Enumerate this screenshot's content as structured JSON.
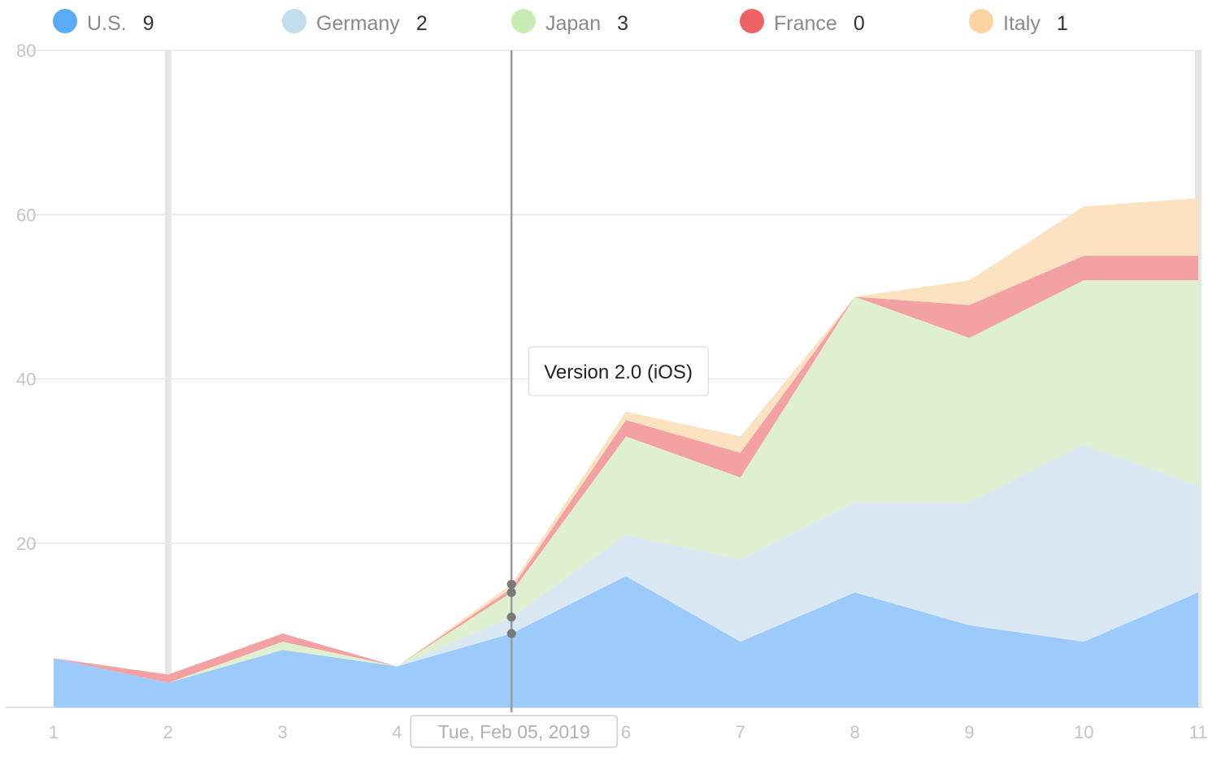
{
  "chart_data": {
    "type": "area",
    "stacked": true,
    "x": [
      1,
      2,
      3,
      4,
      5,
      6,
      7,
      8,
      9,
      10,
      11
    ],
    "x_tick_labels": [
      "1",
      "2",
      "3",
      "4",
      "6",
      "7",
      "8",
      "9",
      "10",
      "11"
    ],
    "ylim": [
      0,
      80
    ],
    "yticks": [
      20,
      40,
      60,
      80
    ],
    "grid": true,
    "legend_placement": "top",
    "series": [
      {
        "name": "U.S.",
        "color": "#5aabf7",
        "fill": "#9ccafa",
        "legend_value": "9",
        "values": [
          6,
          3,
          7,
          5,
          9,
          16,
          8,
          14,
          10,
          8,
          14
        ]
      },
      {
        "name": "Germany",
        "color": "#c3ddf0",
        "fill": "#d9e8f3",
        "legend_value": "2",
        "values": [
          0,
          0,
          0,
          0,
          2,
          5,
          10,
          11,
          15,
          24,
          13
        ]
      },
      {
        "name": "Japan",
        "color": "#c9ecb2",
        "fill": "#dff0d1",
        "legend_value": "3",
        "values": [
          0,
          0,
          1,
          0,
          3,
          12,
          10,
          25,
          20,
          20,
          25
        ]
      },
      {
        "name": "France",
        "color": "#ee6164",
        "fill": "#f4a1a3",
        "legend_value": "0",
        "values": [
          0,
          1,
          1,
          0,
          0.5,
          2,
          3,
          0,
          4,
          3,
          3
        ]
      },
      {
        "name": "Italy",
        "color": "#fbd4a2",
        "fill": "#fde2c1",
        "legend_value": "1",
        "values": [
          0,
          0,
          0,
          0,
          0.5,
          1,
          2,
          0,
          3,
          6,
          7
        ]
      }
    ],
    "annotation": {
      "x": 5,
      "label": "Version 2.0 (iOS)"
    },
    "crosshair": {
      "x": 5,
      "date_label": "Tue, Feb 05, 2019"
    },
    "highlight_bands_x": [
      2,
      11
    ]
  }
}
